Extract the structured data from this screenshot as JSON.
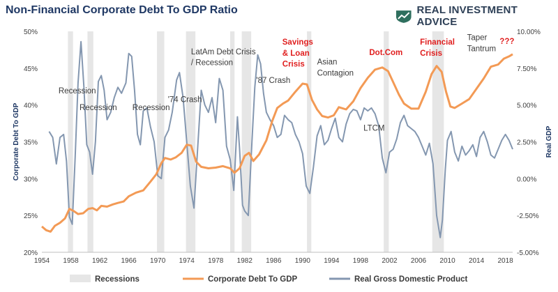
{
  "title": "Non-Financial Corporate Debt To GDP Ratio",
  "brand": {
    "name": "REAL INVESTMENT ADVICE",
    "logo_icon": "shield-chart-icon",
    "logo_color": "#2f6f5e"
  },
  "chart_data": {
    "type": "line",
    "ylabel_left": "Corporate Debt To GDP",
    "ylabel_right": "Real GDP",
    "xlim": [
      1954,
      2019
    ],
    "ylim_left": [
      20,
      50
    ],
    "ylim_right": [
      -5,
      10
    ],
    "x_ticks": [
      "1954",
      "1958",
      "1962",
      "1966",
      "1970",
      "1974",
      "1978",
      "1982",
      "1986",
      "1990",
      "1994",
      "1998",
      "2002",
      "2006",
      "2010",
      "2014",
      "2018"
    ],
    "y_ticks_left": [
      "20%",
      "25%",
      "30%",
      "35%",
      "40%",
      "45%",
      "50%"
    ],
    "y_ticks_right": [
      "-5.00%",
      "-2.50%",
      "0.00%",
      "2.50%",
      "5.00%",
      "7.50%",
      "10.00%"
    ],
    "recessions": [
      [
        1957.6,
        1958.3
      ],
      [
        1960.3,
        1961.1
      ],
      [
        1969.9,
        1970.9
      ],
      [
        1973.9,
        1975.2
      ],
      [
        1980.0,
        1980.6
      ],
      [
        1981.6,
        1982.9
      ],
      [
        1990.6,
        1991.2
      ],
      [
        2001.2,
        2001.9
      ],
      [
        2007.9,
        2009.5
      ]
    ],
    "series": [
      {
        "name": "Corporate Debt To GDP",
        "axis": "left",
        "color": "#f39a55",
        "points": [
          [
            1954,
            23.5
          ],
          [
            1954.6,
            23.0
          ],
          [
            1955.2,
            22.8
          ],
          [
            1955.8,
            23.6
          ],
          [
            1956.5,
            24.0
          ],
          [
            1957.2,
            24.6
          ],
          [
            1957.8,
            25.9
          ],
          [
            1958.4,
            25.6
          ],
          [
            1959,
            25.2
          ],
          [
            1959.7,
            25.3
          ],
          [
            1960.4,
            25.9
          ],
          [
            1961,
            26.0
          ],
          [
            1961.6,
            25.7
          ],
          [
            1962.2,
            26.3
          ],
          [
            1963,
            26.2
          ],
          [
            1963.8,
            26.5
          ],
          [
            1964.5,
            26.7
          ],
          [
            1965.3,
            26.9
          ],
          [
            1966,
            27.6
          ],
          [
            1967,
            28.1
          ],
          [
            1968,
            28.4
          ],
          [
            1969,
            29.6
          ],
          [
            1969.8,
            30.6
          ],
          [
            1970.5,
            32.1
          ],
          [
            1971,
            32.8
          ],
          [
            1971.8,
            32.6
          ],
          [
            1972.5,
            32.9
          ],
          [
            1973.3,
            33.5
          ],
          [
            1974,
            34.6
          ],
          [
            1974.6,
            34.5
          ],
          [
            1975.3,
            32.3
          ],
          [
            1976,
            31.6
          ],
          [
            1977,
            31.4
          ],
          [
            1978,
            31.5
          ],
          [
            1979,
            31.7
          ],
          [
            1980,
            31.4
          ],
          [
            1980.6,
            30.8
          ],
          [
            1981.3,
            31.4
          ],
          [
            1982,
            33.1
          ],
          [
            1982.6,
            33.5
          ],
          [
            1983.2,
            32.4
          ],
          [
            1984,
            33.3
          ],
          [
            1985,
            35.2
          ],
          [
            1985.8,
            37.8
          ],
          [
            1986.5,
            39.6
          ],
          [
            1987.3,
            40.2
          ],
          [
            1988,
            40.6
          ],
          [
            1989,
            41.8
          ],
          [
            1990,
            42.9
          ],
          [
            1990.6,
            42.8
          ],
          [
            1991.3,
            40.7
          ],
          [
            1992,
            39.4
          ],
          [
            1992.7,
            38.5
          ],
          [
            1993.5,
            38.3
          ],
          [
            1994.3,
            38.6
          ],
          [
            1995,
            39.7
          ],
          [
            1996,
            39.4
          ],
          [
            1997,
            40.5
          ],
          [
            1998,
            42.3
          ],
          [
            1999,
            43.7
          ],
          [
            2000,
            44.8
          ],
          [
            2001,
            45.1
          ],
          [
            2001.8,
            44.6
          ],
          [
            2002.5,
            43.1
          ],
          [
            2003.3,
            41.4
          ],
          [
            2004,
            40.2
          ],
          [
            2005,
            39.5
          ],
          [
            2006,
            39.5
          ],
          [
            2007,
            41.8
          ],
          [
            2007.8,
            44.2
          ],
          [
            2008.5,
            45.3
          ],
          [
            2009.2,
            44.5
          ],
          [
            2009.8,
            41.8
          ],
          [
            2010.4,
            39.8
          ],
          [
            2011,
            39.6
          ],
          [
            2012,
            40.2
          ],
          [
            2013,
            40.8
          ],
          [
            2014,
            42.2
          ],
          [
            2015,
            43.6
          ],
          [
            2016,
            45.2
          ],
          [
            2017,
            45.5
          ],
          [
            2017.8,
            46.3
          ],
          [
            2018.5,
            46.6
          ],
          [
            2019,
            46.9
          ]
        ]
      },
      {
        "name": "Real Gross Domestic Product",
        "axis": "right",
        "color": "#8497b0",
        "points": [
          [
            1955,
            3.2
          ],
          [
            1955.5,
            2.8
          ],
          [
            1956,
            1.0
          ],
          [
            1956.5,
            2.8
          ],
          [
            1957,
            3.0
          ],
          [
            1957.4,
            1.2
          ],
          [
            1957.8,
            -2.6
          ],
          [
            1958.2,
            -3.1
          ],
          [
            1958.6,
            1.5
          ],
          [
            1959,
            6.5
          ],
          [
            1959.4,
            9.3
          ],
          [
            1959.8,
            6.3
          ],
          [
            1960.2,
            2.3
          ],
          [
            1960.6,
            1.8
          ],
          [
            1961,
            0.3
          ],
          [
            1961.4,
            2.5
          ],
          [
            1961.8,
            6.6
          ],
          [
            1962.2,
            7.0
          ],
          [
            1962.6,
            6.0
          ],
          [
            1963,
            4.0
          ],
          [
            1963.5,
            4.5
          ],
          [
            1964,
            5.5
          ],
          [
            1964.5,
            6.2
          ],
          [
            1965,
            5.8
          ],
          [
            1965.6,
            6.5
          ],
          [
            1966,
            8.5
          ],
          [
            1966.4,
            8.3
          ],
          [
            1966.8,
            6.0
          ],
          [
            1967.2,
            3.0
          ],
          [
            1967.6,
            2.3
          ],
          [
            1968,
            4.6
          ],
          [
            1968.5,
            4.8
          ],
          [
            1969,
            3.5
          ],
          [
            1969.5,
            2.5
          ],
          [
            1970,
            0.2
          ],
          [
            1970.5,
            0.0
          ],
          [
            1971,
            2.8
          ],
          [
            1971.5,
            3.3
          ],
          [
            1972,
            4.5
          ],
          [
            1972.6,
            6.7
          ],
          [
            1973,
            7.2
          ],
          [
            1973.5,
            5.5
          ],
          [
            1974,
            2.5
          ],
          [
            1974.5,
            -0.5
          ],
          [
            1975,
            -2.0
          ],
          [
            1975.5,
            2.0
          ],
          [
            1976,
            6.0
          ],
          [
            1976.5,
            5.0
          ],
          [
            1977,
            4.5
          ],
          [
            1977.5,
            5.5
          ],
          [
            1978,
            3.8
          ],
          [
            1978.5,
            6.8
          ],
          [
            1979,
            6.0
          ],
          [
            1979.5,
            2.2
          ],
          [
            1980,
            1.3
          ],
          [
            1980.5,
            -0.8
          ],
          [
            1981,
            4.2
          ],
          [
            1981.3,
            2.0
          ],
          [
            1981.7,
            -1.8
          ],
          [
            1982,
            -2.2
          ],
          [
            1982.5,
            -2.5
          ],
          [
            1983,
            2.5
          ],
          [
            1983.4,
            6.2
          ],
          [
            1983.8,
            8.4
          ],
          [
            1984.2,
            7.8
          ],
          [
            1984.6,
            5.8
          ],
          [
            1985,
            4.5
          ],
          [
            1985.5,
            4.0
          ],
          [
            1986,
            3.6
          ],
          [
            1986.5,
            2.8
          ],
          [
            1987,
            3.0
          ],
          [
            1987.5,
            4.3
          ],
          [
            1988,
            4.0
          ],
          [
            1988.5,
            3.8
          ],
          [
            1989,
            3.0
          ],
          [
            1989.5,
            2.5
          ],
          [
            1990,
            1.7
          ],
          [
            1990.5,
            -0.5
          ],
          [
            1991,
            -1.0
          ],
          [
            1991.5,
            0.8
          ],
          [
            1992,
            2.9
          ],
          [
            1992.5,
            3.6
          ],
          [
            1993,
            2.3
          ],
          [
            1993.5,
            2.6
          ],
          [
            1994,
            3.4
          ],
          [
            1994.5,
            4.1
          ],
          [
            1995,
            2.8
          ],
          [
            1995.5,
            2.5
          ],
          [
            1996,
            3.7
          ],
          [
            1996.5,
            4.4
          ],
          [
            1997,
            4.7
          ],
          [
            1997.5,
            4.6
          ],
          [
            1998,
            4.0
          ],
          [
            1998.5,
            4.8
          ],
          [
            1999,
            4.6
          ],
          [
            1999.5,
            4.8
          ],
          [
            2000,
            4.4
          ],
          [
            2000.5,
            3.6
          ],
          [
            2001,
            1.4
          ],
          [
            2001.5,
            0.4
          ],
          [
            2002,
            1.8
          ],
          [
            2002.5,
            2.0
          ],
          [
            2003,
            2.7
          ],
          [
            2003.5,
            3.8
          ],
          [
            2004,
            4.3
          ],
          [
            2004.5,
            3.6
          ],
          [
            2005,
            3.4
          ],
          [
            2005.5,
            3.2
          ],
          [
            2006,
            2.8
          ],
          [
            2006.5,
            2.2
          ],
          [
            2007,
            1.6
          ],
          [
            2007.5,
            2.4
          ],
          [
            2008,
            1.0
          ],
          [
            2008.5,
            -2.5
          ],
          [
            2009,
            -4.0
          ],
          [
            2009.3,
            -2.8
          ],
          [
            2009.7,
            0.6
          ],
          [
            2010,
            2.6
          ],
          [
            2010.5,
            3.2
          ],
          [
            2011,
            1.8
          ],
          [
            2011.5,
            1.2
          ],
          [
            2012,
            2.2
          ],
          [
            2012.5,
            1.6
          ],
          [
            2013,
            1.9
          ],
          [
            2013.5,
            2.3
          ],
          [
            2014,
            1.5
          ],
          [
            2014.5,
            2.8
          ],
          [
            2015,
            3.2
          ],
          [
            2015.5,
            2.5
          ],
          [
            2016,
            1.6
          ],
          [
            2016.5,
            1.4
          ],
          [
            2017,
            2.0
          ],
          [
            2017.5,
            2.6
          ],
          [
            2018,
            3.0
          ],
          [
            2018.5,
            2.6
          ],
          [
            2019,
            2.0
          ]
        ]
      }
    ],
    "annotations": [
      {
        "text": "Recession",
        "x": 1956.3,
        "y": 41.6,
        "color": "#3a3a3a"
      },
      {
        "text": "Recession",
        "x": 1959.2,
        "y": 39.3,
        "color": "#3a3a3a"
      },
      {
        "text": "Recession",
        "x": 1966.5,
        "y": 39.3,
        "color": "#3a3a3a"
      },
      {
        "text": "'74 Crash",
        "x": 1971.4,
        "y": 40.4,
        "color": "#3a3a3a"
      },
      {
        "text": "LatAm Debt Crisis",
        "x": 1974.6,
        "y": 46.9,
        "color": "#3a3a3a"
      },
      {
        "text": "/ Recession",
        "x": 1974.6,
        "y": 45.4,
        "color": "#3a3a3a"
      },
      {
        "text": "'87 Crash",
        "x": 1983.6,
        "y": 43.0,
        "color": "#3a3a3a"
      },
      {
        "text": "Savings",
        "x": 1987.2,
        "y": 48.2,
        "color": "#e02020"
      },
      {
        "text": "& Loan",
        "x": 1987.2,
        "y": 46.7,
        "color": "#e02020"
      },
      {
        "text": "Crisis",
        "x": 1987.2,
        "y": 45.2,
        "color": "#e02020"
      },
      {
        "text": "Asian",
        "x": 1992.0,
        "y": 45.5,
        "color": "#3a3a3a"
      },
      {
        "text": "Contagion",
        "x": 1992.0,
        "y": 44.0,
        "color": "#3a3a3a"
      },
      {
        "text": "Dot.Com",
        "x": 1999.2,
        "y": 46.8,
        "color": "#e02020"
      },
      {
        "text": "LTCM",
        "x": 1998.4,
        "y": 36.5,
        "color": "#3a3a3a"
      },
      {
        "text": "Financial",
        "x": 2006.2,
        "y": 48.2,
        "color": "#e02020"
      },
      {
        "text": "Crisis",
        "x": 2006.2,
        "y": 46.7,
        "color": "#e02020"
      },
      {
        "text": "Taper",
        "x": 2012.7,
        "y": 48.8,
        "color": "#3a3a3a"
      },
      {
        "text": "Tantrum",
        "x": 2012.7,
        "y": 47.3,
        "color": "#3a3a3a"
      },
      {
        "text": "???",
        "x": 2017.2,
        "y": 48.3,
        "color": "#e02020"
      }
    ],
    "legend": {
      "placement": "bottom",
      "items": [
        {
          "label": "Recessions",
          "kind": "box",
          "color": "#e6e6e6"
        },
        {
          "label": "Corporate Debt To GDP",
          "kind": "line",
          "color": "#f39a55"
        },
        {
          "label": "Real Gross Domestic Product",
          "kind": "line",
          "color": "#8497b0"
        }
      ]
    },
    "grid": false
  }
}
